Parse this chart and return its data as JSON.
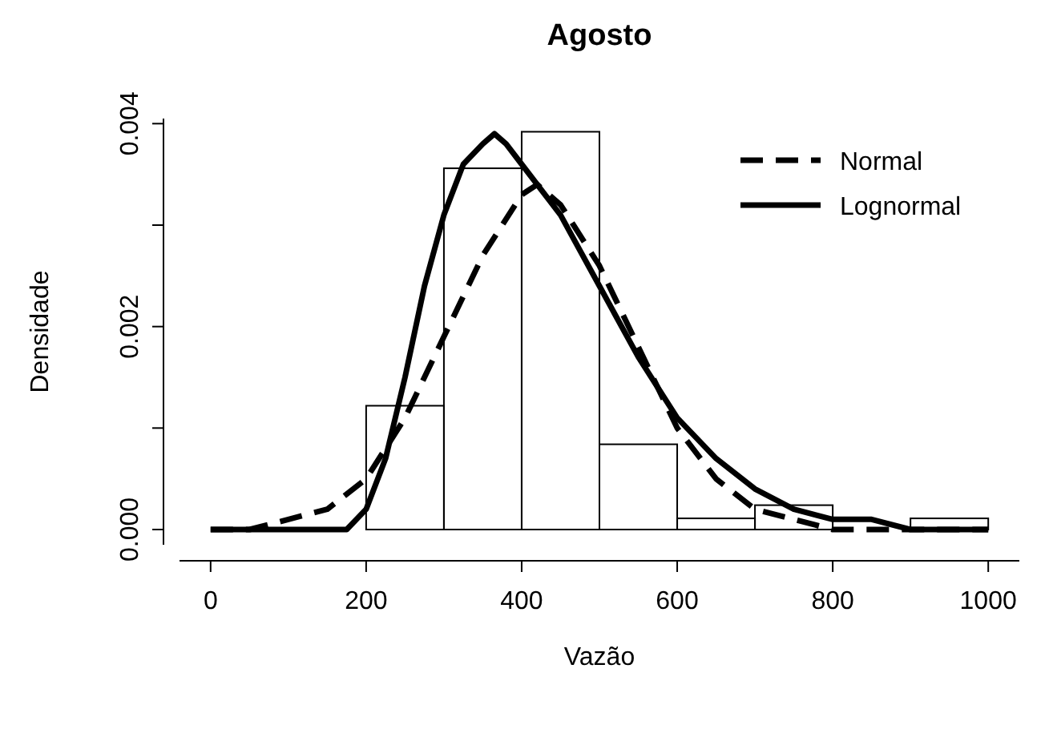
{
  "chart_data": {
    "type": "histogram",
    "title": "Agosto",
    "xlabel": "Vazão",
    "ylabel": "Densidade",
    "bins": [
      200,
      300,
      400,
      500,
      600,
      700,
      800,
      900,
      1000
    ],
    "values": [
      0.00122,
      0.00356,
      0.00392,
      0.00084,
      0.00011,
      0.00024,
      0,
      0.00011
    ],
    "color": "#000000",
    "series": [
      {
        "name": "Normal",
        "type": "line",
        "line_style": "dashed",
        "color": "#000000",
        "x": [
          0,
          50,
          100,
          150,
          200,
          250,
          300,
          350,
          400,
          420,
          450,
          500,
          550,
          600,
          650,
          700,
          750,
          800,
          850,
          1000
        ],
        "values": [
          0,
          0,
          0.0001,
          0.0002,
          0.0005,
          0.0011,
          0.0019,
          0.0027,
          0.0033,
          0.0034,
          0.0032,
          0.0026,
          0.0018,
          0.001,
          0.0005,
          0.0002,
          0.0001,
          0,
          0,
          0
        ]
      },
      {
        "name": "Lognormal",
        "type": "line",
        "line_style": "solid",
        "color": "#000000",
        "x": [
          0,
          150,
          175,
          200,
          225,
          250,
          275,
          300,
          325,
          350,
          365,
          380,
          400,
          450,
          500,
          550,
          600,
          650,
          700,
          750,
          800,
          850,
          900,
          1000
        ],
        "values": [
          0,
          0,
          0,
          0.0002,
          0.0007,
          0.0015,
          0.0024,
          0.0031,
          0.0036,
          0.0038,
          0.0039,
          0.0038,
          0.0036,
          0.0031,
          0.0024,
          0.0017,
          0.0011,
          0.0007,
          0.0004,
          0.0002,
          0.0001,
          0.0001,
          0,
          0
        ]
      }
    ],
    "xlim": [
      -40,
      1040
    ],
    "ylim": [
      -0.00015,
      0.00405
    ],
    "xticks": [
      0,
      200,
      400,
      600,
      800,
      1000
    ],
    "yticks": [
      {
        "value": 0,
        "label": "0.000"
      },
      {
        "value": 0.001,
        "label": null
      },
      {
        "value": 0.002,
        "label": "0.002"
      },
      {
        "value": 0.003,
        "label": null
      },
      {
        "value": 0.004,
        "label": "0.004"
      }
    ],
    "legend": "top right",
    "grid": false
  }
}
